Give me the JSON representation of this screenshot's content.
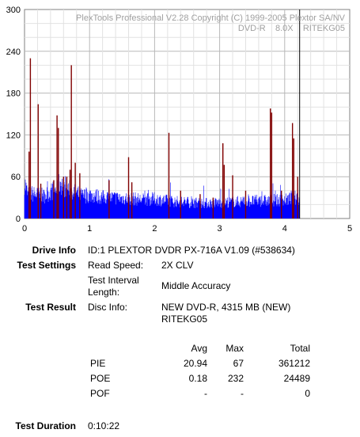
{
  "chart_data": {
    "type": "bar",
    "watermark": [
      "PlexTools Professional V2.28 Copyright (C) 1999-2005 Plextor SA/NV",
      "DVD-R    8.0X    RITEKG05"
    ],
    "xlim": [
      0,
      5
    ],
    "ylim": [
      0,
      300
    ],
    "x_ticks": [
      "0",
      "1",
      "2",
      "3",
      "4",
      "5"
    ],
    "y_ticks": [
      "0",
      "60",
      "120",
      "180",
      "240",
      "300"
    ],
    "grid": true,
    "series": [
      {
        "color": "#0000ff",
        "baseline_points": [
          [
            0.0,
            62
          ],
          [
            0.05,
            40
          ],
          [
            0.1,
            42
          ],
          [
            0.2,
            40
          ],
          [
            0.3,
            38
          ],
          [
            0.4,
            45
          ],
          [
            0.5,
            50
          ],
          [
            0.55,
            62
          ],
          [
            0.6,
            55
          ],
          [
            0.7,
            48
          ],
          [
            0.8,
            42
          ],
          [
            0.9,
            38
          ],
          [
            1.0,
            40
          ],
          [
            1.2,
            36
          ],
          [
            1.4,
            35
          ],
          [
            1.6,
            34
          ],
          [
            1.8,
            32
          ],
          [
            2.0,
            33
          ],
          [
            2.2,
            30
          ],
          [
            2.4,
            28
          ],
          [
            2.6,
            27
          ],
          [
            2.8,
            26
          ],
          [
            3.0,
            27
          ],
          [
            3.2,
            28
          ],
          [
            3.4,
            29
          ],
          [
            3.6,
            30
          ],
          [
            3.8,
            30
          ],
          [
            4.0,
            31
          ],
          [
            4.1,
            34
          ],
          [
            4.2,
            36
          ],
          [
            4.23,
            30
          ]
        ],
        "description_hidden": true
      },
      {
        "color": "#800000",
        "spikes": [
          [
            0.07,
            96
          ],
          [
            0.09,
            230
          ],
          [
            0.21,
            164
          ],
          [
            0.25,
            50
          ],
          [
            0.45,
            55
          ],
          [
            0.5,
            148
          ],
          [
            0.52,
            130
          ],
          [
            0.6,
            60
          ],
          [
            0.65,
            60
          ],
          [
            0.7,
            70
          ],
          [
            0.72,
            220
          ],
          [
            0.78,
            80
          ],
          [
            0.85,
            65
          ],
          [
            1.3,
            55
          ],
          [
            1.6,
            88
          ],
          [
            1.65,
            52
          ],
          [
            2.22,
            123
          ],
          [
            2.4,
            40
          ],
          [
            2.7,
            35
          ],
          [
            2.9,
            30
          ],
          [
            3.05,
            108
          ],
          [
            3.07,
            77
          ],
          [
            3.2,
            62
          ],
          [
            3.4,
            40
          ],
          [
            3.78,
            158
          ],
          [
            3.8,
            152
          ],
          [
            3.95,
            40
          ],
          [
            4.12,
            137
          ],
          [
            4.14,
            115
          ],
          [
            4.2,
            60
          ]
        ]
      }
    ],
    "marker_x": 4.23
  },
  "info": {
    "drive_info_label": "Drive Info",
    "drive_info_value": "ID:1 PLEXTOR DVDR PX-716A V1.09 (#538634)",
    "test_settings_label": "Test Settings",
    "read_speed_label": "Read Speed:",
    "read_speed_value": "2X CLV",
    "interval_label_1": "Test Interval",
    "interval_label_2": "Length:",
    "interval_value": "Middle Accuracy",
    "test_result_label": "Test Result",
    "disc_info_label": "Disc Info:",
    "disc_info_value_1": "NEW DVD-R, 4315 MB (NEW)",
    "disc_info_value_2": "RITEKG05",
    "test_duration_label": "Test Duration",
    "test_duration_value": "0:10:22"
  },
  "results": {
    "headers": {
      "avg": "Avg",
      "max": "Max",
      "total": "Total"
    },
    "rows": [
      {
        "name": "PIE",
        "avg": "20.94",
        "max": "67",
        "total": "361212"
      },
      {
        "name": "POE",
        "avg": "0.18",
        "max": "232",
        "total": "24489"
      },
      {
        "name": "POF",
        "avg": "-",
        "max": "-",
        "total": "0"
      }
    ]
  }
}
